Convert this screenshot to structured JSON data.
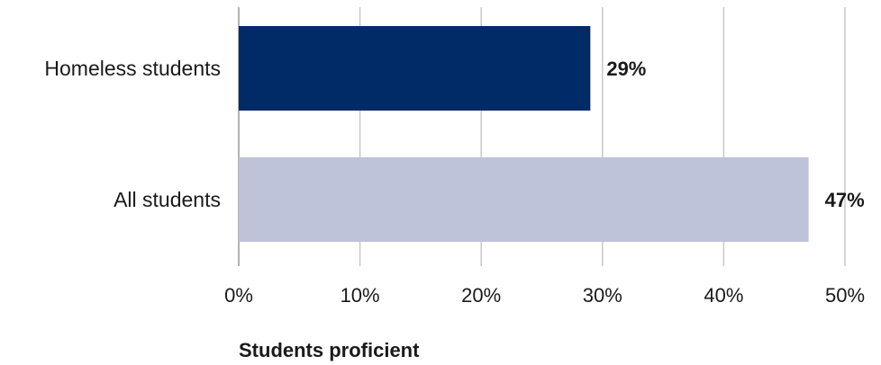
{
  "chart_data": {
    "type": "bar",
    "orientation": "horizontal",
    "categories": [
      "Homeless students",
      "All students"
    ],
    "values": [
      29,
      47
    ],
    "value_labels": [
      "29%",
      "47%"
    ],
    "bar_colors": [
      "#002B66",
      "#BFC3D9"
    ],
    "xlabel": "Students proficient",
    "xlim": [
      0,
      50
    ],
    "x_ticks": [
      0,
      10,
      20,
      30,
      40,
      50
    ],
    "x_tick_labels": [
      "0%",
      "10%",
      "20%",
      "30%",
      "40%",
      "50%"
    ],
    "grid": "vertical",
    "gridline_color": "#c8c8c8"
  }
}
